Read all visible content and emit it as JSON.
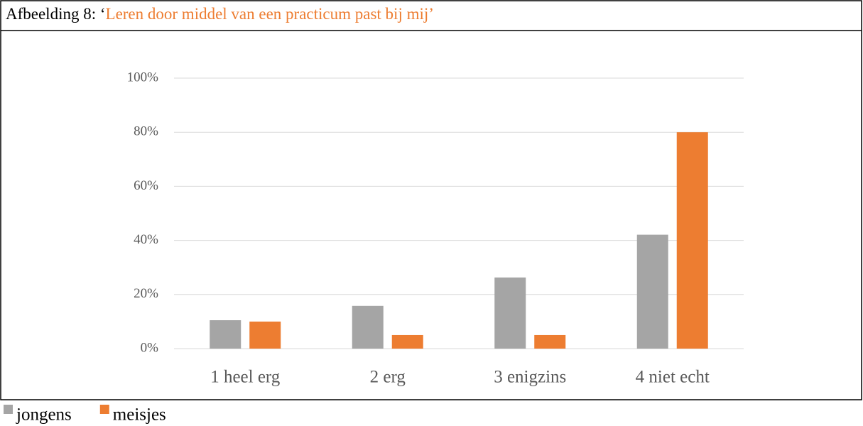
{
  "chart_data": {
    "type": "bar",
    "label": "Afbeelding 8: ‘",
    "title": "Leren door middel van een practicum past bij mij’",
    "categories": [
      "1 heel erg",
      "2 erg",
      "3 enigzins",
      "4 niet echt"
    ],
    "series": [
      {
        "name": "jongens",
        "color": "#a5a5a5",
        "values": [
          10.5,
          15.8,
          26.3,
          42.1
        ]
      },
      {
        "name": "meisjes",
        "color": "#ed7d31",
        "values": [
          10,
          5,
          5,
          80
        ]
      }
    ],
    "ylim": [
      0,
      100
    ],
    "yticks": [
      {
        "value": 0,
        "label": "0%"
      },
      {
        "value": 20,
        "label": "20%"
      },
      {
        "value": 40,
        "label": "40%"
      },
      {
        "value": 60,
        "label": "60%"
      },
      {
        "value": 80,
        "label": "80%"
      },
      {
        "value": 100,
        "label": "100%"
      }
    ],
    "grid": true,
    "legend": "bottom-left"
  }
}
